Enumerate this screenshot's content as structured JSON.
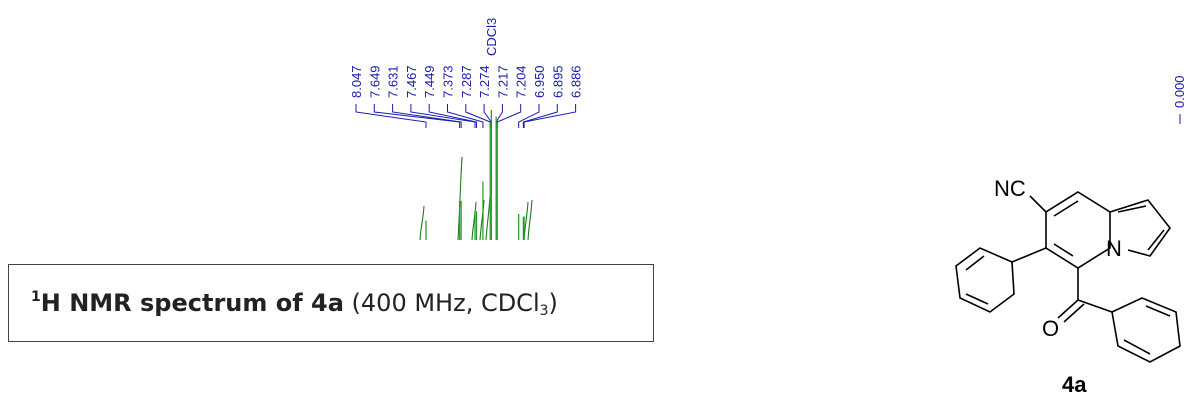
{
  "chart_data": {
    "type": "nmr-spectrum",
    "peaks_ppm": [
      "8.047",
      "7.649",
      "7.631",
      "7.467",
      "7.449",
      "7.373",
      "7.287",
      "7.274",
      "7.217",
      "7.204",
      "6.950",
      "6.895",
      "6.886"
    ],
    "solvent_label": "CDCl3",
    "solvent_peak_ppm": "7.274",
    "reference_peak_ppm": "0.000",
    "caption": {
      "nucleus_sup": "1",
      "bold_text": "H NMR spectrum of 4a",
      "rest_text": " (400 MHz, CDCl",
      "sub": "3",
      "close": ")"
    }
  },
  "molecule": {
    "substituent_label": "NC",
    "ring_nitrogen": "N",
    "carbonyl_oxygen": "O",
    "compound_label": "4a"
  },
  "colors": {
    "peak_label": "#1a1ab0",
    "integral_curve": "#1f7a1f",
    "spectrum_line": "#1f9a1f"
  }
}
